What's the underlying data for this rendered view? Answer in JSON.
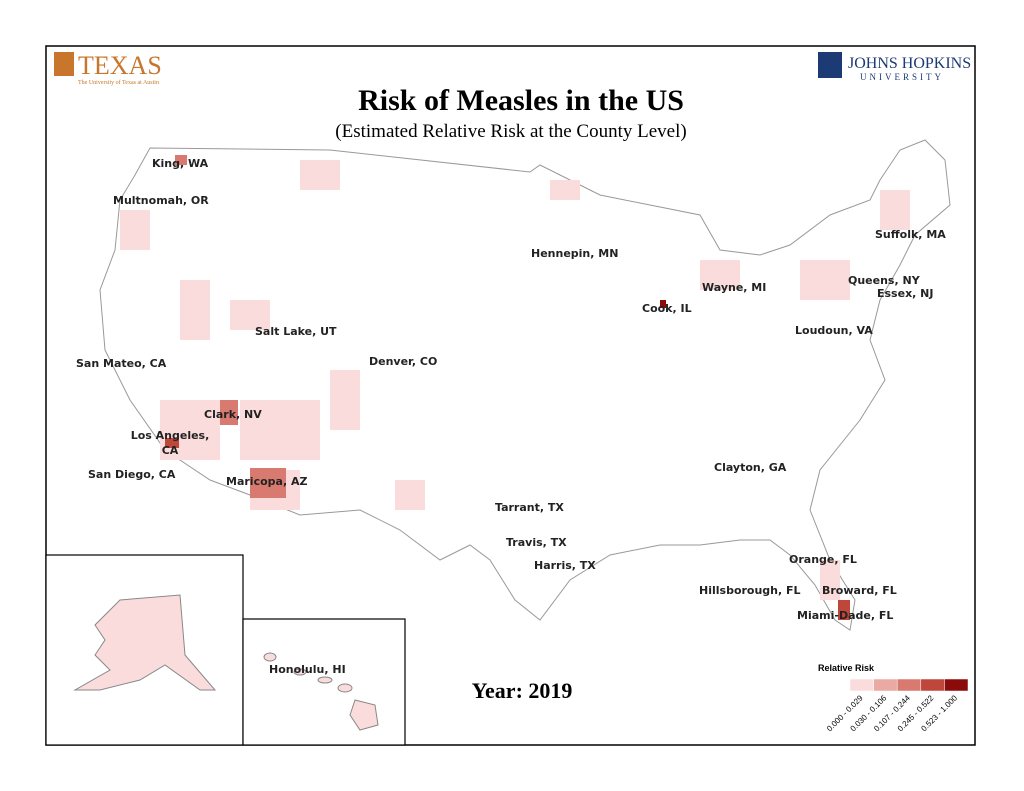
{
  "header": {
    "left_logo": "TEXAS",
    "left_logo_sub": "The University of Texas at Austin",
    "right_logo": "JOHNS HOPKINS",
    "right_logo_sub": "UNIVERSITY"
  },
  "title": "Risk of  Measles in the US",
  "subtitle": "(Estimated Relative Risk at the County Level)",
  "labels": [
    "King, WA",
    "Multnomah, OR",
    "Hennepin, MN",
    "Suffolk, MA",
    "Wayne, MI",
    "Queens, NY",
    "Essex, NJ",
    "Cook, IL",
    "Salt Lake, UT",
    "Loudoun, VA",
    "San Mateo, CA",
    "Denver, CO",
    "Clark, NV",
    "Los Angeles, CA",
    "San Diego, CA",
    "Maricopa, AZ",
    "Clayton, GA",
    "Tarrant, TX",
    "Travis, TX",
    "Harris, TX",
    "Orange, FL",
    "Hillsborough, FL",
    "Broward, FL",
    "Miami-Dade, FL",
    "Honolulu, HI"
  ],
  "year": "Year: 2019",
  "legend": {
    "title": "Relative Risk",
    "bins": [
      {
        "label": "0.000 - 0.029",
        "color": "#fbdcdc"
      },
      {
        "label": "0.030 - 0.106",
        "color": "#eba9a4"
      },
      {
        "label": "0.107 - 0.244",
        "color": "#d87a70"
      },
      {
        "label": "0.245 - 0.522",
        "color": "#bf463b"
      },
      {
        "label": "0.523 - 1.000",
        "color": "#8b0a0a"
      }
    ]
  }
}
